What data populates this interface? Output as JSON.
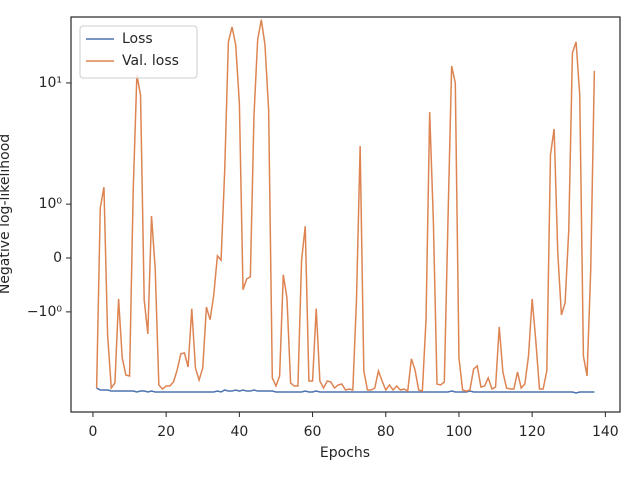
{
  "chart_data": {
    "type": "line",
    "xlabel": "Epochs",
    "ylabel": "Negative log-likelihood",
    "yscale": "symlog",
    "linthresh": 1,
    "linscale": 0.4,
    "xlim": [
      -6,
      144
    ],
    "ylim": [
      -6.7,
      35
    ],
    "xticks": [
      0,
      20,
      40,
      60,
      80,
      100,
      120,
      140
    ],
    "yticks": [
      {
        "value": -1,
        "label": "−10⁰"
      },
      0,
      {
        "value": 1,
        "label": "10⁰"
      },
      {
        "value": 10,
        "label": "10¹"
      }
    ],
    "legend": "upper left",
    "x": [
      1,
      2,
      3,
      4,
      5,
      6,
      7,
      8,
      9,
      10,
      11,
      12,
      13,
      14,
      15,
      16,
      17,
      18,
      19,
      20,
      21,
      22,
      23,
      24,
      25,
      26,
      27,
      28,
      29,
      30,
      31,
      32,
      33,
      34,
      35,
      36,
      37,
      38,
      39,
      40,
      41,
      42,
      43,
      44,
      45,
      46,
      47,
      48,
      49,
      50,
      51,
      52,
      53,
      54,
      55,
      56,
      57,
      58,
      59,
      60,
      61,
      62,
      63,
      64,
      65,
      66,
      67,
      68,
      69,
      70,
      71,
      72,
      73,
      74,
      75,
      76,
      77,
      78,
      79,
      80,
      81,
      82,
      83,
      84,
      85,
      86,
      87,
      88,
      89,
      90,
      91,
      92,
      93,
      94,
      95,
      96,
      97,
      98,
      99,
      100,
      101,
      102,
      103,
      104,
      105,
      106,
      107,
      108,
      109,
      110,
      111,
      112,
      113,
      114,
      115,
      116,
      117,
      118,
      119,
      120,
      121,
      122,
      123,
      124,
      125,
      126,
      127,
      128,
      129,
      130,
      131,
      132,
      133,
      134,
      135,
      136,
      137
    ],
    "series": [
      {
        "name": "Loss",
        "color": "#4c72b0",
        "values": [
          -4.25,
          -4.41,
          -4.41,
          -4.41,
          -4.5,
          -4.5,
          -4.5,
          -4.5,
          -4.5,
          -4.5,
          -4.5,
          -4.58,
          -4.5,
          -4.5,
          -4.58,
          -4.5,
          -4.58,
          -4.58,
          -4.58,
          -4.58,
          -4.58,
          -4.58,
          -4.58,
          -4.58,
          -4.58,
          -4.58,
          -4.58,
          -4.58,
          -4.58,
          -4.58,
          -4.58,
          -4.58,
          -4.58,
          -4.5,
          -4.58,
          -4.41,
          -4.5,
          -4.5,
          -4.41,
          -4.5,
          -4.41,
          -4.5,
          -4.5,
          -4.41,
          -4.5,
          -4.5,
          -4.5,
          -4.5,
          -4.5,
          -4.58,
          -4.58,
          -4.58,
          -4.58,
          -4.58,
          -4.58,
          -4.58,
          -4.58,
          -4.5,
          -4.58,
          -4.58,
          -4.5,
          -4.58,
          -4.58,
          -4.58,
          -4.58,
          -4.58,
          -4.58,
          -4.58,
          -4.58,
          -4.58,
          -4.58,
          -4.58,
          -4.58,
          -4.58,
          -4.58,
          -4.58,
          -4.58,
          -4.58,
          -4.58,
          -4.58,
          -4.58,
          -4.58,
          -4.58,
          -4.58,
          -4.58,
          -4.58,
          -4.58,
          -4.58,
          -4.58,
          -4.58,
          -4.58,
          -4.58,
          -4.58,
          -4.58,
          -4.58,
          -4.58,
          -4.58,
          -4.5,
          -4.58,
          -4.58,
          -4.58,
          -4.58,
          -4.5,
          -4.58,
          -4.58,
          -4.58,
          -4.58,
          -4.58,
          -4.58,
          -4.58,
          -4.58,
          -4.58,
          -4.58,
          -4.58,
          -4.58,
          -4.58,
          -4.58,
          -4.58,
          -4.58,
          -4.58,
          -4.58,
          -4.58,
          -4.58,
          -4.58,
          -4.58,
          -4.58,
          -4.58,
          -4.58,
          -4.58,
          -4.58,
          -4.58,
          -4.67,
          -4.58,
          -4.58,
          -4.58,
          -4.58,
          -4.58
        ]
      },
      {
        "name": "Val. loss",
        "color": "#dd8452",
        "values": [
          -4.25,
          0.93,
          1.38,
          -1.55,
          -4.25,
          -3.86,
          -0.76,
          -2.4,
          -3.32,
          -3.38,
          1.31,
          11.6,
          7.96,
          -0.78,
          -1.52,
          0.78,
          -0.19,
          -4.01,
          -4.33,
          -4.09,
          -4.09,
          -3.79,
          -3.02,
          -2.22,
          -2.18,
          -2.85,
          -0.94,
          -2.9,
          -3.65,
          -2.9,
          -0.91,
          -1.16,
          -0.69,
          0.04,
          -0.04,
          1.91,
          21.8,
          29.0,
          20.6,
          6.84,
          -0.59,
          -0.39,
          -0.35,
          5.44,
          22.7,
          33.2,
          20.6,
          5.98,
          -3.51,
          -4.09,
          -3.38,
          -0.31,
          -0.74,
          -3.86,
          -4.09,
          -4.09,
          -0.04,
          0.59,
          -3.72,
          -3.72,
          -0.94,
          -3.72,
          -4.25,
          -3.72,
          -3.79,
          -4.25,
          -4.01,
          -3.94,
          -4.41,
          -4.33,
          -4.41,
          -0.78,
          3.02,
          -3.07,
          -4.41,
          -4.41,
          -4.25,
          -3.07,
          -3.72,
          -4.41,
          -4.01,
          -4.41,
          -4.09,
          -4.41,
          -4.33,
          -4.5,
          -2.44,
          -3.02,
          -4.41,
          -4.5,
          -1.16,
          5.76,
          0.7,
          -3.94,
          -4.01,
          -3.79,
          0.7,
          13.8,
          10.0,
          -2.4,
          -4.41,
          -4.5,
          -4.41,
          -2.96,
          -2.79,
          -4.17,
          -4.09,
          -3.51,
          -4.33,
          -4.17,
          -1.33,
          -3.13,
          -4.25,
          -4.33,
          -4.33,
          -3.13,
          -4.25,
          -3.94,
          -2.31,
          -0.76,
          -1.74,
          -4.33,
          -4.33,
          -3.07,
          2.54,
          4.17,
          0.09,
          -1.06,
          -0.83,
          0.52,
          17.7,
          21.8,
          7.96,
          -2.31,
          -3.38,
          -0.22,
          12.6
        ]
      }
    ]
  }
}
